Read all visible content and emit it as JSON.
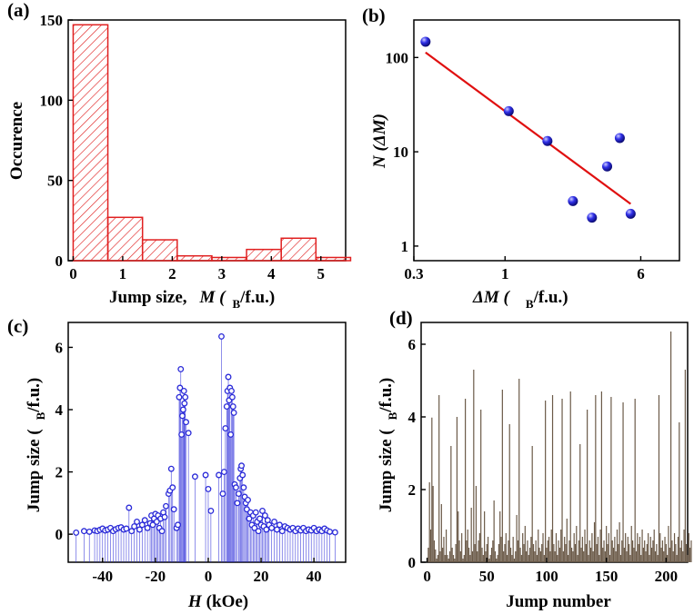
{
  "chart_data": [
    {
      "panel": "(a)",
      "type": "bar",
      "xlabel_prefix": "Jump size,",
      "xlabel_var": "M (",
      "xlabel_sub": "B",
      "xlabel_unit": "/f.u.)",
      "ylabel": "Occurence",
      "xlim": [
        -0.1,
        5.5
      ],
      "ylim": [
        0,
        150
      ],
      "xticks": [
        "0",
        "1",
        "2",
        "3",
        "4",
        "5"
      ],
      "yticks": [
        "0",
        "50",
        "100",
        "150"
      ],
      "bin_width": 0.7,
      "bins": [
        {
          "x0": 0.0,
          "value": 147
        },
        {
          "x0": 0.7,
          "value": 27
        },
        {
          "x0": 1.4,
          "value": 13
        },
        {
          "x0": 2.1,
          "value": 3
        },
        {
          "x0": 2.8,
          "value": 2
        },
        {
          "x0": 3.5,
          "value": 7
        },
        {
          "x0": 4.2,
          "value": 14
        },
        {
          "x0": 4.9,
          "value": 2
        }
      ],
      "color": "#e02020",
      "pattern": "hatched"
    },
    {
      "panel": "(b)",
      "type": "scatter",
      "scale": "log-log",
      "xlabel_var": "ΔM (",
      "xlabel_sub": "B",
      "xlabel_unit": "/f.u.)",
      "ylabel_var": "N (ΔM)",
      "xlim": [
        0.3,
        10
      ],
      "ylim": [
        0.7,
        250
      ],
      "xticks": [
        "0.3",
        "1",
        "6"
      ],
      "yticks": [
        "1",
        "10",
        "100"
      ],
      "points": [
        {
          "x": 0.35,
          "y": 147
        },
        {
          "x": 1.05,
          "y": 27
        },
        {
          "x": 1.75,
          "y": 13
        },
        {
          "x": 2.45,
          "y": 3
        },
        {
          "x": 3.15,
          "y": 2
        },
        {
          "x": 3.85,
          "y": 7
        },
        {
          "x": 4.55,
          "y": 14
        },
        {
          "x": 5.25,
          "y": 2.2
        }
      ],
      "fit_line": {
        "x": [
          0.35,
          5.25
        ],
        "y": [
          113,
          2.8
        ]
      },
      "point_color": "#2222dd",
      "line_color": "#e01010"
    },
    {
      "panel": "(c)",
      "type": "scatter",
      "style": "stem",
      "xlabel_var": "H",
      "xlabel_unit": "(kOe)",
      "ylabel": "Jump size (",
      "ylabel_sub": "B",
      "ylabel_unit": "/f.u.)",
      "xlim": [
        -53,
        52
      ],
      "ylim": [
        -0.9,
        6.8
      ],
      "xticks": [
        "-40",
        "-20",
        "0",
        "20",
        "40"
      ],
      "yticks": [
        "0",
        "2",
        "4",
        "6"
      ],
      "points": [
        {
          "x": -50,
          "y": 0.05
        },
        {
          "x": -47,
          "y": 0.1
        },
        {
          "x": -45,
          "y": 0.08
        },
        {
          "x": -43,
          "y": 0.12
        },
        {
          "x": -42,
          "y": 0.1
        },
        {
          "x": -41,
          "y": 0.14
        },
        {
          "x": -40,
          "y": 0.18
        },
        {
          "x": -39,
          "y": 0.12
        },
        {
          "x": -38,
          "y": 0.15
        },
        {
          "x": -37,
          "y": 0.2
        },
        {
          "x": -36,
          "y": 0.1
        },
        {
          "x": -35,
          "y": 0.16
        },
        {
          "x": -34,
          "y": 0.2
        },
        {
          "x": -33,
          "y": 0.22
        },
        {
          "x": -32,
          "y": 0.15
        },
        {
          "x": -31,
          "y": 0.18
        },
        {
          "x": -30,
          "y": 0.85
        },
        {
          "x": -29,
          "y": 0.1
        },
        {
          "x": -28,
          "y": 0.25
        },
        {
          "x": -27,
          "y": 0.4
        },
        {
          "x": -26,
          "y": 0.15
        },
        {
          "x": -25,
          "y": 0.3
        },
        {
          "x": -24,
          "y": 0.45
        },
        {
          "x": -23,
          "y": 0.2
        },
        {
          "x": -22,
          "y": 0.35
        },
        {
          "x": -21.5,
          "y": 0.6
        },
        {
          "x": -21,
          "y": 0.3
        },
        {
          "x": -20.5,
          "y": 0.5
        },
        {
          "x": -20,
          "y": 0.65
        },
        {
          "x": -19.5,
          "y": 0.4
        },
        {
          "x": -19,
          "y": 0.6
        },
        {
          "x": -18.5,
          "y": 0.2
        },
        {
          "x": -18,
          "y": 0.5
        },
        {
          "x": -17.5,
          "y": 0.1
        },
        {
          "x": -17,
          "y": 0.7
        },
        {
          "x": -16.5,
          "y": 0.55
        },
        {
          "x": -16,
          "y": 0.9
        },
        {
          "x": -15,
          "y": 1.3
        },
        {
          "x": -14.5,
          "y": 1.4
        },
        {
          "x": -14,
          "y": 2.1
        },
        {
          "x": -13.5,
          "y": 1.5
        },
        {
          "x": -13,
          "y": 0.8
        },
        {
          "x": -12,
          "y": 0.2
        },
        {
          "x": -11.5,
          "y": 0.3
        },
        {
          "x": -11,
          "y": 4.4
        },
        {
          "x": -10.7,
          "y": 4.7
        },
        {
          "x": -10.4,
          "y": 5.3
        },
        {
          "x": -10.1,
          "y": 3.2
        },
        {
          "x": -9.8,
          "y": 3.8
        },
        {
          "x": -9.5,
          "y": 4.0
        },
        {
          "x": -9.2,
          "y": 4.6
        },
        {
          "x": -9,
          "y": 4.2
        },
        {
          "x": -8.7,
          "y": 4.4
        },
        {
          "x": -8.4,
          "y": 3.6
        },
        {
          "x": -7.5,
          "y": 3.25
        },
        {
          "x": -5,
          "y": 1.85
        },
        {
          "x": -1,
          "y": 1.9
        },
        {
          "x": 0,
          "y": 1.45
        },
        {
          "x": 1,
          "y": 0.75
        },
        {
          "x": 4,
          "y": 1.9
        },
        {
          "x": 5,
          "y": 6.35
        },
        {
          "x": 5.5,
          "y": 1.3
        },
        {
          "x": 6,
          "y": 2.0
        },
        {
          "x": 6.5,
          "y": 3.4
        },
        {
          "x": 7,
          "y": 4.1
        },
        {
          "x": 7.3,
          "y": 4.6
        },
        {
          "x": 7.6,
          "y": 5.05
        },
        {
          "x": 7.9,
          "y": 4.3
        },
        {
          "x": 8.2,
          "y": 4.7
        },
        {
          "x": 8.5,
          "y": 3.2
        },
        {
          "x": 8.8,
          "y": 4.6
        },
        {
          "x": 9.1,
          "y": 4.4
        },
        {
          "x": 9.4,
          "y": 4.1
        },
        {
          "x": 9.7,
          "y": 3.9
        },
        {
          "x": 10,
          "y": 1.6
        },
        {
          "x": 10.5,
          "y": 1.5
        },
        {
          "x": 11,
          "y": 1.0
        },
        {
          "x": 11.5,
          "y": 1.3
        },
        {
          "x": 12,
          "y": 1.8
        },
        {
          "x": 12.3,
          "y": 2.1
        },
        {
          "x": 12.6,
          "y": 2.2
        },
        {
          "x": 13,
          "y": 1.9
        },
        {
          "x": 13.4,
          "y": 1.5
        },
        {
          "x": 13.8,
          "y": 1.2
        },
        {
          "x": 14.2,
          "y": 1.0
        },
        {
          "x": 14.6,
          "y": 0.8
        },
        {
          "x": 15,
          "y": 1.1
        },
        {
          "x": 15.5,
          "y": 0.5
        },
        {
          "x": 16,
          "y": 0.7
        },
        {
          "x": 16.5,
          "y": 0.3
        },
        {
          "x": 17,
          "y": 0.6
        },
        {
          "x": 17.5,
          "y": 0.2
        },
        {
          "x": 18,
          "y": 0.7
        },
        {
          "x": 18.5,
          "y": 0.4
        },
        {
          "x": 19,
          "y": 0.1
        },
        {
          "x": 19.5,
          "y": 0.5
        },
        {
          "x": 20,
          "y": 0.3
        },
        {
          "x": 20.5,
          "y": 0.75
        },
        {
          "x": 21,
          "y": 0.25
        },
        {
          "x": 21.5,
          "y": 0.6
        },
        {
          "x": 22,
          "y": 0.15
        },
        {
          "x": 22.5,
          "y": 0.45
        },
        {
          "x": 23,
          "y": 0.3
        },
        {
          "x": 24,
          "y": 0.2
        },
        {
          "x": 25,
          "y": 0.4
        },
        {
          "x": 26,
          "y": 0.15
        },
        {
          "x": 27,
          "y": 0.3
        },
        {
          "x": 28,
          "y": 0.1
        },
        {
          "x": 29,
          "y": 0.25
        },
        {
          "x": 30,
          "y": 0.2
        },
        {
          "x": 31,
          "y": 0.15
        },
        {
          "x": 32,
          "y": 0.2
        },
        {
          "x": 33,
          "y": 0.1
        },
        {
          "x": 34,
          "y": 0.18
        },
        {
          "x": 35,
          "y": 0.12
        },
        {
          "x": 36,
          "y": 0.2
        },
        {
          "x": 37,
          "y": 0.1
        },
        {
          "x": 38,
          "y": 0.15
        },
        {
          "x": 39,
          "y": 0.12
        },
        {
          "x": 40,
          "y": 0.2
        },
        {
          "x": 41,
          "y": 0.1
        },
        {
          "x": 42,
          "y": 0.15
        },
        {
          "x": 43,
          "y": 0.1
        },
        {
          "x": 44,
          "y": 0.18
        },
        {
          "x": 45,
          "y": 0.12
        },
        {
          "x": 46,
          "y": 0.08
        },
        {
          "x": 48,
          "y": 0.06
        }
      ],
      "color": "#2a2ad8"
    },
    {
      "panel": "(d)",
      "type": "bar",
      "xlabel": "Jump number",
      "ylabel": "Jump size (",
      "ylabel_sub": "B",
      "ylabel_unit": "/f.u.)",
      "xlim": [
        -5,
        218
      ],
      "ylim": [
        0,
        6.6
      ],
      "xticks": [
        "0",
        "50",
        "100",
        "150",
        "200"
      ],
      "yticks": [
        "0",
        "2",
        "4",
        "6"
      ],
      "values": [
        0.4,
        2.2,
        0.9,
        3.98,
        2.1,
        0.6,
        0.35,
        0.1,
        0.2,
        4.6,
        0.3,
        1.6,
        0.4,
        0.7,
        0.2,
        0.9,
        0.2,
        0.1,
        0.3,
        3.2,
        0.4,
        0.2,
        0.1,
        0.5,
        4.0,
        1.4,
        0.6,
        0.3,
        0.8,
        0.1,
        0.2,
        4.5,
        0.6,
        0.9,
        0.4,
        0.2,
        1.5,
        0.3,
        5.3,
        0.5,
        2.1,
        0.3,
        0.6,
        0.8,
        4.2,
        0.4,
        0.2,
        1.4,
        0.3,
        0.5,
        0.7,
        0.1,
        0.2,
        0.4,
        0.6,
        1.7,
        0.3,
        0.1,
        0.2,
        0.5,
        1.4,
        0.7,
        4.75,
        0.3,
        0.5,
        0.8,
        0.2,
        0.6,
        3.8,
        0.4,
        0.2,
        0.7,
        0.1,
        0.3,
        1.3,
        0.6,
        5.05,
        0.4,
        0.2,
        0.8,
        0.5,
        1.0,
        0.3,
        0.6,
        0.2,
        0.4,
        0.7,
        3.2,
        0.5,
        0.3,
        0.6,
        0.2,
        0.9,
        0.4,
        0.3,
        0.5,
        0.8,
        0.2,
        4.45,
        0.4,
        0.6,
        0.7,
        0.3,
        0.9,
        4.6,
        0.5,
        0.3,
        0.8,
        0.2,
        0.6,
        0.4,
        0.9,
        4.5,
        0.3,
        0.7,
        0.5,
        1.2,
        0.2,
        0.6,
        4.7,
        0.4,
        0.3,
        0.8,
        0.5,
        1.0,
        0.2,
        0.6,
        3.25,
        0.4,
        0.7,
        0.3,
        0.9,
        0.5,
        4.2,
        0.2,
        0.6,
        0.4,
        0.8,
        0.3,
        1.1,
        4.6,
        0.5,
        0.7,
        0.2,
        0.9,
        4.7,
        0.4,
        0.6,
        0.3,
        1.0,
        0.5,
        0.8,
        0.2,
        4.55,
        0.6,
        0.4,
        0.7,
        0.3,
        0.9,
        0.5,
        1.1,
        0.2,
        0.6,
        4.4,
        0.4,
        0.8,
        0.3,
        0.7,
        0.5,
        0.2,
        1.0,
        0.6,
        0.4,
        4.5,
        0.3,
        0.8,
        0.5,
        0.7,
        0.2,
        0.9,
        0.4,
        0.6,
        0.3,
        0.5,
        0.8,
        0.2,
        0.7,
        0.4,
        0.6,
        0.9,
        0.3,
        0.5,
        0.2,
        4.6,
        0.8,
        0.4,
        0.6,
        0.3,
        0.7,
        0.5,
        0.2,
        1.0,
        0.4,
        6.35,
        0.6,
        0.3,
        0.8,
        0.5,
        0.2,
        0.7,
        3.85,
        0.4,
        0.6,
        0.3,
        0.9,
        5.3,
        0.5,
        0.2,
        0.8,
        0.4,
        0.6
      ],
      "color": "#6b5a48"
    }
  ]
}
